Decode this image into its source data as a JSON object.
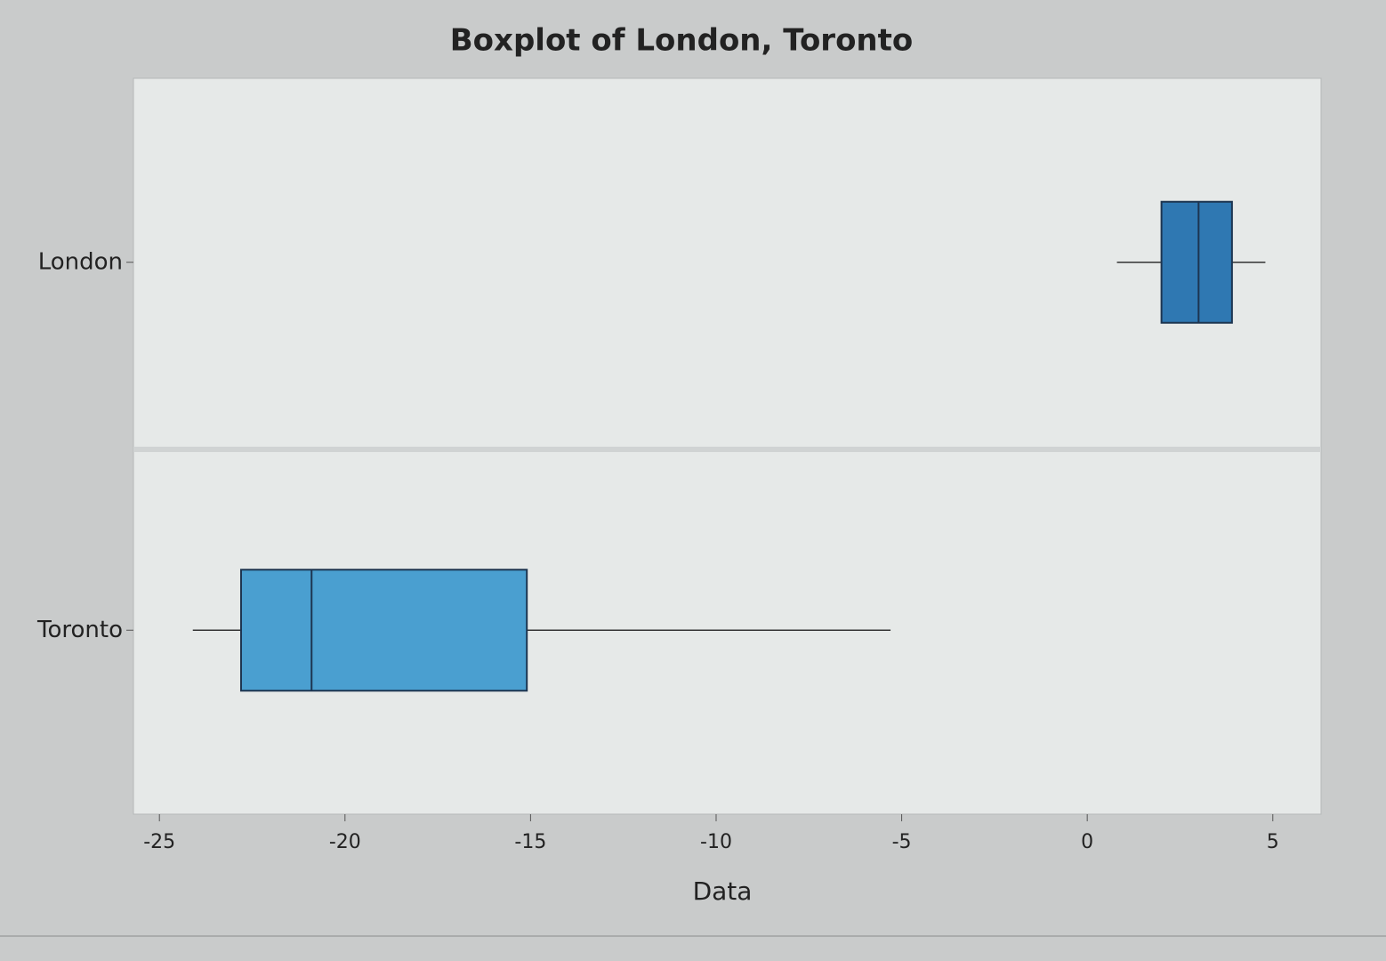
{
  "chart_data": {
    "type": "boxplot",
    "title": "Boxplot of London, Toronto",
    "xlabel": "Data",
    "categories": [
      "London",
      "Toronto"
    ],
    "min": [
      0.8,
      -24.1
    ],
    "q1": [
      2.0,
      -22.8
    ],
    "median": [
      3.0,
      -20.9
    ],
    "q3": [
      3.9,
      -15.1
    ],
    "max": [
      4.8,
      -5.3
    ],
    "colors": [
      "#2f78b2",
      "#4a9fd0"
    ],
    "xlim": [
      -25.7,
      6.3
    ],
    "xticks": [
      -25,
      -20,
      -15,
      -10,
      -5,
      0,
      5
    ]
  }
}
